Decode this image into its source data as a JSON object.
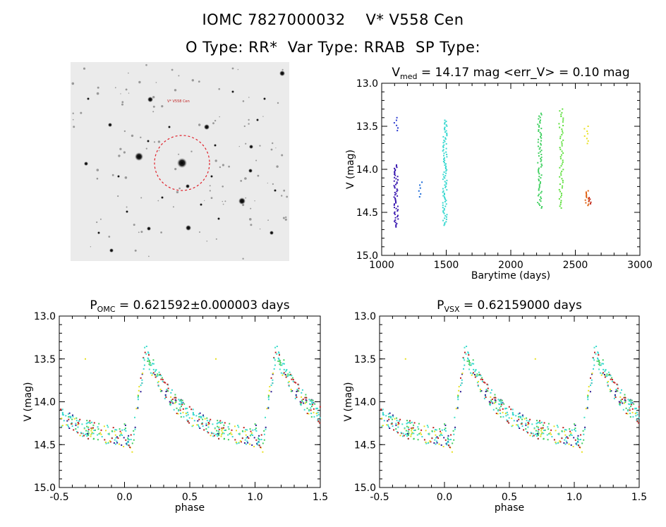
{
  "header": {
    "title_line1": "IOMC 7827000032    V* V558 Cen",
    "title_line2": "O Type: RR*  Var Type: RRAB  SP Type:"
  },
  "image_panel": {
    "target_label": "V* V558 Cen",
    "circle_color": "#e0202a"
  },
  "chart_data": [
    {
      "type": "scatter",
      "id": "lightcurve",
      "title_main": "V",
      "title_sub": "med",
      "title_rest": " = 14.17 mag <err_V> = 0.10 mag",
      "xlabel": "Barytime (days)",
      "ylabel": "V (mag)",
      "xlim": [
        1000,
        3000
      ],
      "ylim": [
        15.0,
        13.0
      ],
      "xticks": [
        "1000",
        "1500",
        "2000",
        "2500",
        "3000"
      ],
      "yticks": [
        "13.0",
        "13.5",
        "14.0",
        "14.5",
        "15.0"
      ],
      "groups": [
        {
          "x": 1112,
          "ymin": 13.95,
          "ymax": 14.67,
          "color": "#3b1ab0",
          "n": 55
        },
        {
          "x": 1113,
          "ymin": 13.4,
          "ymax": 13.55,
          "color": "#2a3ad0",
          "n": 6
        },
        {
          "x": 1300,
          "ymin": 14.15,
          "ymax": 14.32,
          "color": "#1a6ad8",
          "n": 6
        },
        {
          "x": 1490,
          "ymin": 13.43,
          "ymax": 14.65,
          "color": "#38d8d0",
          "n": 90
        },
        {
          "x": 2225,
          "ymin": 13.35,
          "ymax": 14.45,
          "color": "#40d060",
          "n": 70
        },
        {
          "x": 2390,
          "ymin": 13.3,
          "ymax": 14.45,
          "color": "#60e040",
          "n": 55
        },
        {
          "x": 2585,
          "ymin": 13.5,
          "ymax": 13.7,
          "color": "#e8e020",
          "n": 8
        },
        {
          "x": 2590,
          "ymin": 14.25,
          "ymax": 14.42,
          "color": "#e06010",
          "n": 12
        },
        {
          "x": 2605,
          "ymin": 14.33,
          "ymax": 14.4,
          "color": "#c02010",
          "n": 5
        }
      ]
    },
    {
      "type": "scatter",
      "id": "phase_omc",
      "title_main": "P",
      "title_sub": "OMC",
      "title_rest": " = 0.621592±0.000003 days",
      "xlabel": "phase",
      "ylabel": "V (mag)",
      "xlim": [
        -0.5,
        1.5
      ],
      "ylim": [
        15.0,
        13.0
      ],
      "xticks": [
        "-0.5",
        "0.0",
        "0.5",
        "1.0",
        "1.5"
      ],
      "yticks": [
        "13.0",
        "13.5",
        "14.0",
        "14.5",
        "15.0"
      ]
    },
    {
      "type": "scatter",
      "id": "phase_vsx",
      "title_main": "P",
      "title_sub": "VSX",
      "title_rest": " = 0.62159000 days",
      "xlabel": "phase",
      "ylabel": "V (mag)",
      "xlim": [
        -0.5,
        1.5
      ],
      "ylim": [
        15.0,
        13.0
      ],
      "xticks": [
        "-0.5",
        "0.0",
        "0.5",
        "1.0",
        "1.5"
      ],
      "yticks": [
        "13.0",
        "13.5",
        "14.0",
        "14.5",
        "15.0"
      ]
    }
  ],
  "colors": {
    "phase_palette": [
      "#38d8d0",
      "#38d8d0",
      "#40e0c8",
      "#40d060",
      "#2a1a90",
      "#e8e020",
      "#c02020"
    ]
  }
}
